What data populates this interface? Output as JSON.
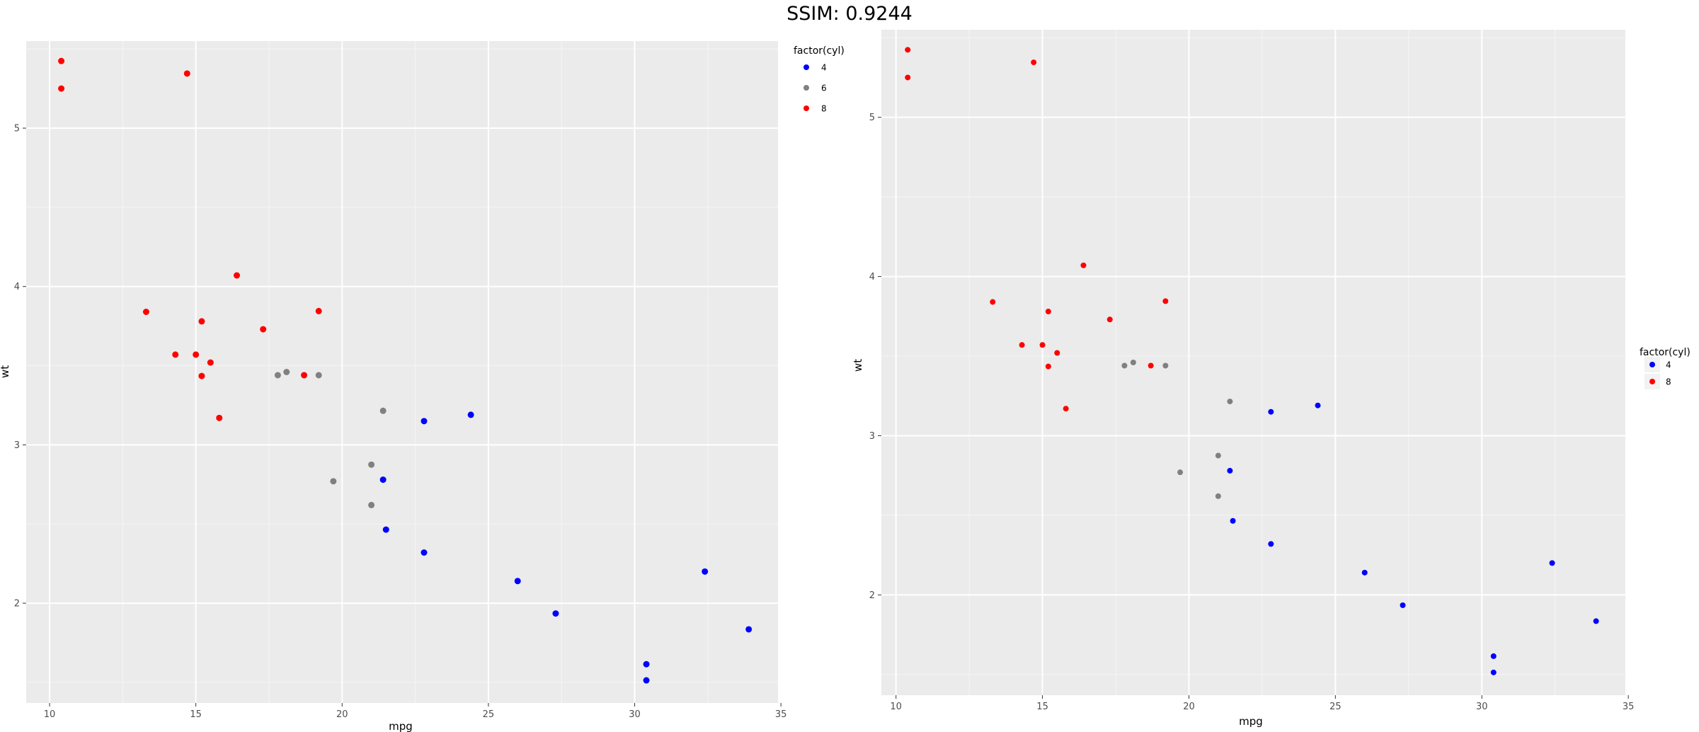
{
  "header": {
    "title": "SSIM: 0.9244"
  },
  "chart_data": [
    {
      "type": "scatter",
      "title": "",
      "xlabel": "mpg",
      "ylabel": "wt",
      "xlim": [
        9.2,
        34.9
      ],
      "ylim": [
        1.37,
        5.55
      ],
      "xticks": [
        10,
        15,
        20,
        25,
        30,
        35
      ],
      "yticks": [
        2,
        3,
        4,
        5
      ],
      "grid": true,
      "legend": {
        "title": "factor(cyl)",
        "position": "right",
        "entries": [
          {
            "label": "4",
            "color": "#0000ff"
          },
          {
            "label": "6",
            "color": "#808080"
          },
          {
            "label": "8",
            "color": "#ff0000"
          }
        ]
      },
      "series": [
        {
          "name": "4",
          "color": "#0000ff",
          "points": [
            [
              22.8,
              2.32
            ],
            [
              24.4,
              3.19
            ],
            [
              22.8,
              3.15
            ],
            [
              32.4,
              2.2
            ],
            [
              30.4,
              1.615
            ],
            [
              33.9,
              1.835
            ],
            [
              21.5,
              2.465
            ],
            [
              27.3,
              1.935
            ],
            [
              26.0,
              2.14
            ],
            [
              30.4,
              1.513
            ],
            [
              21.4,
              2.78
            ]
          ]
        },
        {
          "name": "6",
          "color": "#808080",
          "points": [
            [
              21.0,
              2.62
            ],
            [
              21.0,
              2.875
            ],
            [
              21.4,
              3.215
            ],
            [
              18.1,
              3.46
            ],
            [
              19.2,
              3.44
            ],
            [
              17.8,
              3.44
            ],
            [
              19.7,
              2.77
            ]
          ]
        },
        {
          "name": "8",
          "color": "#ff0000",
          "points": [
            [
              18.7,
              3.44
            ],
            [
              14.3,
              3.57
            ],
            [
              16.4,
              4.07
            ],
            [
              17.3,
              3.73
            ],
            [
              15.2,
              3.78
            ],
            [
              10.4,
              5.25
            ],
            [
              10.4,
              5.424
            ],
            [
              14.7,
              5.345
            ],
            [
              15.5,
              3.52
            ],
            [
              15.2,
              3.435
            ],
            [
              13.3,
              3.84
            ],
            [
              19.2,
              3.845
            ],
            [
              15.8,
              3.17
            ],
            [
              15.0,
              3.57
            ]
          ]
        }
      ]
    },
    {
      "type": "scatter",
      "title": "",
      "xlabel": "mpg",
      "ylabel": "wt",
      "xlim": [
        9.5,
        34.9
      ],
      "ylim": [
        1.37,
        5.55
      ],
      "xticks": [
        10,
        15,
        20,
        25,
        30,
        35
      ],
      "yticks": [
        2,
        3,
        4,
        5
      ],
      "grid": true,
      "legend": {
        "title": "factor(cyl)",
        "position": "right",
        "entries": [
          {
            "label": "4",
            "color": "#0000ff"
          },
          {
            "label": "8",
            "color": "#ff0000"
          }
        ]
      },
      "series": [
        {
          "name": "4",
          "color": "#0000ff",
          "points": [
            [
              22.8,
              2.32
            ],
            [
              24.4,
              3.19
            ],
            [
              22.8,
              3.15
            ],
            [
              32.4,
              2.2
            ],
            [
              30.4,
              1.615
            ],
            [
              33.9,
              1.835
            ],
            [
              21.5,
              2.465
            ],
            [
              27.3,
              1.935
            ],
            [
              26.0,
              2.14
            ],
            [
              30.4,
              1.513
            ],
            [
              21.4,
              2.78
            ]
          ]
        },
        {
          "name": "",
          "color": "#808080",
          "points": [
            [
              21.0,
              2.62
            ],
            [
              21.0,
              2.875
            ],
            [
              21.4,
              3.215
            ],
            [
              18.1,
              3.46
            ],
            [
              19.2,
              3.44
            ],
            [
              17.8,
              3.44
            ],
            [
              19.7,
              2.77
            ]
          ]
        },
        {
          "name": "8",
          "color": "#ff0000",
          "points": [
            [
              18.7,
              3.44
            ],
            [
              14.3,
              3.57
            ],
            [
              16.4,
              4.07
            ],
            [
              17.3,
              3.73
            ],
            [
              15.2,
              3.78
            ],
            [
              10.4,
              5.25
            ],
            [
              10.4,
              5.424
            ],
            [
              14.7,
              5.345
            ],
            [
              15.5,
              3.52
            ],
            [
              15.2,
              3.435
            ],
            [
              13.3,
              3.84
            ],
            [
              19.2,
              3.845
            ],
            [
              15.8,
              3.17
            ],
            [
              15.0,
              3.57
            ]
          ]
        }
      ]
    }
  ]
}
